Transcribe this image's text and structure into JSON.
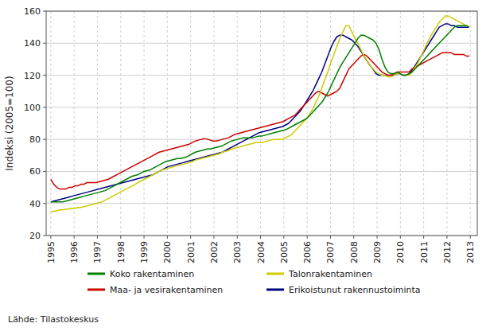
{
  "chart_data": {
    "type": "line",
    "y_label": "Indeksi (2005=100)",
    "annotations": [
      "Lähde: Tilastokeskus"
    ],
    "grid": true,
    "legend": "bottom",
    "xlim": [
      1994.8,
      2013.3
    ],
    "xticks": [
      1995,
      1996,
      1997,
      1998,
      1999,
      2000,
      2001,
      2002,
      2003,
      2004,
      2005,
      2006,
      2007,
      2008,
      2009,
      2010,
      2011,
      2012,
      2013
    ],
    "ylim": [
      20,
      160
    ],
    "yticks": [
      20,
      40,
      60,
      80,
      100,
      120,
      140,
      160
    ],
    "x": [
      1995.0,
      1995.1292,
      1995.2584,
      1995.3876,
      1995.5168,
      1995.646,
      1995.7752,
      1995.9044,
      1996.0336,
      1996.1628,
      1996.292,
      1996.4212,
      1996.5504,
      1996.6796,
      1996.8088,
      1996.9379,
      1997.0671,
      1997.1963,
      1997.3255,
      1997.4547,
      1997.5839,
      1997.7131,
      1997.8423,
      1997.9715,
      1998.1007,
      1998.2299,
      1998.3591,
      1998.4883,
      1998.6175,
      1998.7467,
      1998.8759,
      1999.0051,
      1999.1343,
      1999.2635,
      1999.3927,
      1999.5219,
      1999.6511,
      1999.7803,
      1999.9095,
      2000.0387,
      2000.1679,
      2000.2971,
      2000.4263,
      2000.5555,
      2000.6847,
      2000.8138,
      2000.943,
      2001.0722,
      2001.2014,
      2001.3306,
      2001.4598,
      2001.589,
      2001.7182,
      2001.8474,
      2001.9766,
      2002.1058,
      2002.235,
      2002.3642,
      2002.4934,
      2002.6226,
      2002.7518,
      2002.881,
      2003.0102,
      2003.1394,
      2003.2686,
      2003.3978,
      2003.527,
      2003.6562,
      2003.7854,
      2003.9146,
      2004.0438,
      2004.173,
      2004.3022,
      2004.4314,
      2004.5606,
      2004.6897,
      2004.8189,
      2004.9481,
      2005.0773,
      2005.2065,
      2005.3357,
      2005.4649,
      2005.5941,
      2005.7233,
      2005.8525,
      2005.9817,
      2006.1109,
      2006.2401,
      2006.3693,
      2006.4985,
      2006.6277,
      2006.7569,
      2006.8861,
      2007.0153,
      2007.1445,
      2007.2737,
      2007.4029,
      2007.5321,
      2007.6613,
      2007.7905,
      2007.9197,
      2008.0489,
      2008.1781,
      2008.3073,
      2008.4365,
      2008.5656,
      2008.6948,
      2008.824,
      2008.9532,
      2009.0824,
      2009.2116,
      2009.3408,
      2009.47,
      2009.5992,
      2009.7284,
      2009.8576,
      2009.9868,
      2010.116,
      2010.2452,
      2010.3744,
      2010.5036,
      2010.6328,
      2010.762,
      2010.8912,
      2011.0204,
      2011.1496,
      2011.2788,
      2011.408,
      2011.5372,
      2011.6664,
      2011.7956,
      2011.9248,
      2012.054,
      2012.1832,
      2012.3124,
      2012.4415,
      2012.5707,
      2012.6999,
      2012.8291,
      2012.9583
    ],
    "series": [
      {
        "name": "Koko rakentaminen",
        "color": "#008000",
        "values": [
          41,
          41,
          41,
          41,
          41,
          41.5,
          42,
          42.5,
          43,
          43.5,
          44,
          44.5,
          45,
          45.5,
          46,
          46.5,
          47,
          47.5,
          48,
          49,
          50,
          51,
          52,
          53,
          54,
          55,
          56,
          57,
          57.5,
          58,
          59,
          60,
          60.5,
          61,
          62,
          63,
          64,
          65,
          66,
          66.5,
          67,
          67.5,
          68,
          68,
          68.5,
          69,
          70,
          71,
          72,
          72.5,
          73,
          73.5,
          74,
          74,
          74.5,
          75,
          75.5,
          76,
          77,
          78,
          79,
          79.5,
          80,
          80.5,
          81,
          81,
          81,
          81,
          81.5,
          82,
          82,
          82.5,
          83,
          83.5,
          84,
          84.5,
          85,
          85.5,
          86,
          87,
          88,
          89,
          90,
          91,
          92,
          93,
          95,
          97,
          99,
          101,
          103,
          106,
          109,
          113,
          117,
          121,
          125,
          128,
          131,
          134,
          137,
          140,
          143,
          145,
          145,
          144,
          143,
          142,
          140,
          136,
          130,
          125,
          122,
          121,
          121,
          122,
          121,
          120,
          120,
          121,
          122,
          124,
          126,
          128,
          130,
          132,
          134,
          136,
          138,
          140,
          142,
          144,
          146,
          148,
          150,
          151,
          151,
          151,
          151,
          150
        ]
      },
      {
        "name": "Talonrakentaminen",
        "color": "#CCCC00",
        "values": [
          35,
          35,
          35.5,
          36,
          36,
          36.5,
          36.5,
          37,
          37,
          37.5,
          37.5,
          38,
          38.5,
          39,
          39.5,
          40,
          40.5,
          41,
          42,
          43,
          44,
          45,
          46,
          47,
          48,
          49,
          50,
          51,
          52,
          53,
          54,
          55,
          56,
          57,
          58,
          59,
          60,
          61,
          61.5,
          62,
          62.5,
          63,
          63.5,
          64,
          64.5,
          65,
          65.5,
          66,
          67,
          67.5,
          68,
          68.5,
          69,
          69.5,
          70,
          70.5,
          71,
          72,
          72.5,
          73,
          74,
          74.5,
          75,
          75.5,
          76,
          76.5,
          77,
          77.5,
          78,
          78,
          78,
          78.5,
          79,
          79.5,
          80,
          80,
          80,
          80,
          81,
          82,
          83,
          85,
          87,
          89,
          91,
          93,
          96,
          99,
          103,
          107,
          112,
          117,
          122,
          128,
          133,
          138,
          143,
          147,
          151,
          151,
          147,
          143,
          140,
          136,
          132,
          129,
          126,
          124,
          122,
          121,
          120,
          120,
          119,
          119,
          120,
          121,
          121,
          120,
          120,
          120,
          122,
          125,
          128,
          132,
          136,
          140,
          144,
          147,
          150,
          153,
          155,
          157,
          157,
          156,
          155,
          154,
          153,
          152,
          151,
          150
        ]
      },
      {
        "name": "Maa- ja vesirakentaminen",
        "color": "#CC0000",
        "values": [
          55,
          52,
          50,
          49,
          49,
          49,
          50,
          50,
          51,
          51,
          52,
          52,
          53,
          53,
          53,
          53,
          53.5,
          54,
          54.5,
          55,
          56,
          57,
          58,
          59,
          60,
          61,
          62,
          63,
          64,
          65,
          66,
          67,
          68,
          69,
          70,
          71,
          72,
          72.5,
          73,
          73.5,
          74,
          74.5,
          75,
          75.5,
          76,
          76.5,
          77,
          78,
          79,
          79.5,
          80,
          80.5,
          80,
          79.5,
          79,
          79,
          79.5,
          80,
          80.5,
          81,
          82,
          83,
          83.5,
          84,
          84.5,
          85,
          85.5,
          86,
          86.5,
          87,
          87.5,
          88,
          88.5,
          89,
          89.5,
          90,
          90.5,
          91,
          92,
          93,
          94,
          95,
          97,
          99,
          101,
          103,
          105,
          107,
          109,
          110,
          109,
          108,
          107,
          108,
          109,
          110,
          112,
          116,
          120,
          124,
          126,
          128,
          130,
          132,
          133,
          132,
          130,
          128,
          126,
          124,
          122,
          121,
          120,
          120,
          121,
          122,
          122,
          122,
          122,
          122,
          124,
          125,
          126,
          127,
          128,
          129,
          130,
          131,
          132,
          133,
          134,
          134,
          134,
          134,
          133,
          133,
          133,
          133,
          132,
          132
        ]
      },
      {
        "name": "Erikoistunut rakennustoiminta",
        "color": "#000080",
        "values": [
          41,
          41.5,
          42,
          42.5,
          43,
          43.5,
          44,
          44.5,
          45,
          45.5,
          46,
          46.5,
          47,
          47.5,
          48,
          48.5,
          49,
          49.5,
          50,
          50.5,
          51,
          51.5,
          52,
          52.5,
          53,
          53.5,
          54,
          54.5,
          55,
          55.5,
          56,
          56.5,
          57,
          57.5,
          58,
          59,
          60,
          61,
          62,
          63,
          63.5,
          64,
          64.5,
          65,
          65.5,
          66,
          66.5,
          67,
          67.5,
          68,
          68.5,
          69,
          69.5,
          70,
          70.5,
          71,
          71.5,
          72,
          73,
          74,
          75,
          76,
          77,
          78,
          79,
          80,
          81,
          82,
          83,
          84,
          84.5,
          85,
          85.5,
          86,
          86.5,
          87,
          87.5,
          88,
          89,
          90,
          92,
          94,
          96,
          98,
          101,
          104,
          107,
          110,
          114,
          118,
          122,
          127,
          132,
          137,
          141,
          144,
          145,
          145,
          144,
          143,
          142,
          140,
          138,
          135,
          132,
          129,
          126,
          124,
          121,
          120,
          120,
          120,
          120,
          120,
          120,
          121,
          121,
          120,
          120,
          121,
          123,
          126,
          129,
          132,
          135,
          138,
          141,
          144,
          147,
          150,
          151,
          152,
          152,
          151,
          151,
          150,
          150,
          150,
          150,
          150
        ]
      }
    ]
  }
}
